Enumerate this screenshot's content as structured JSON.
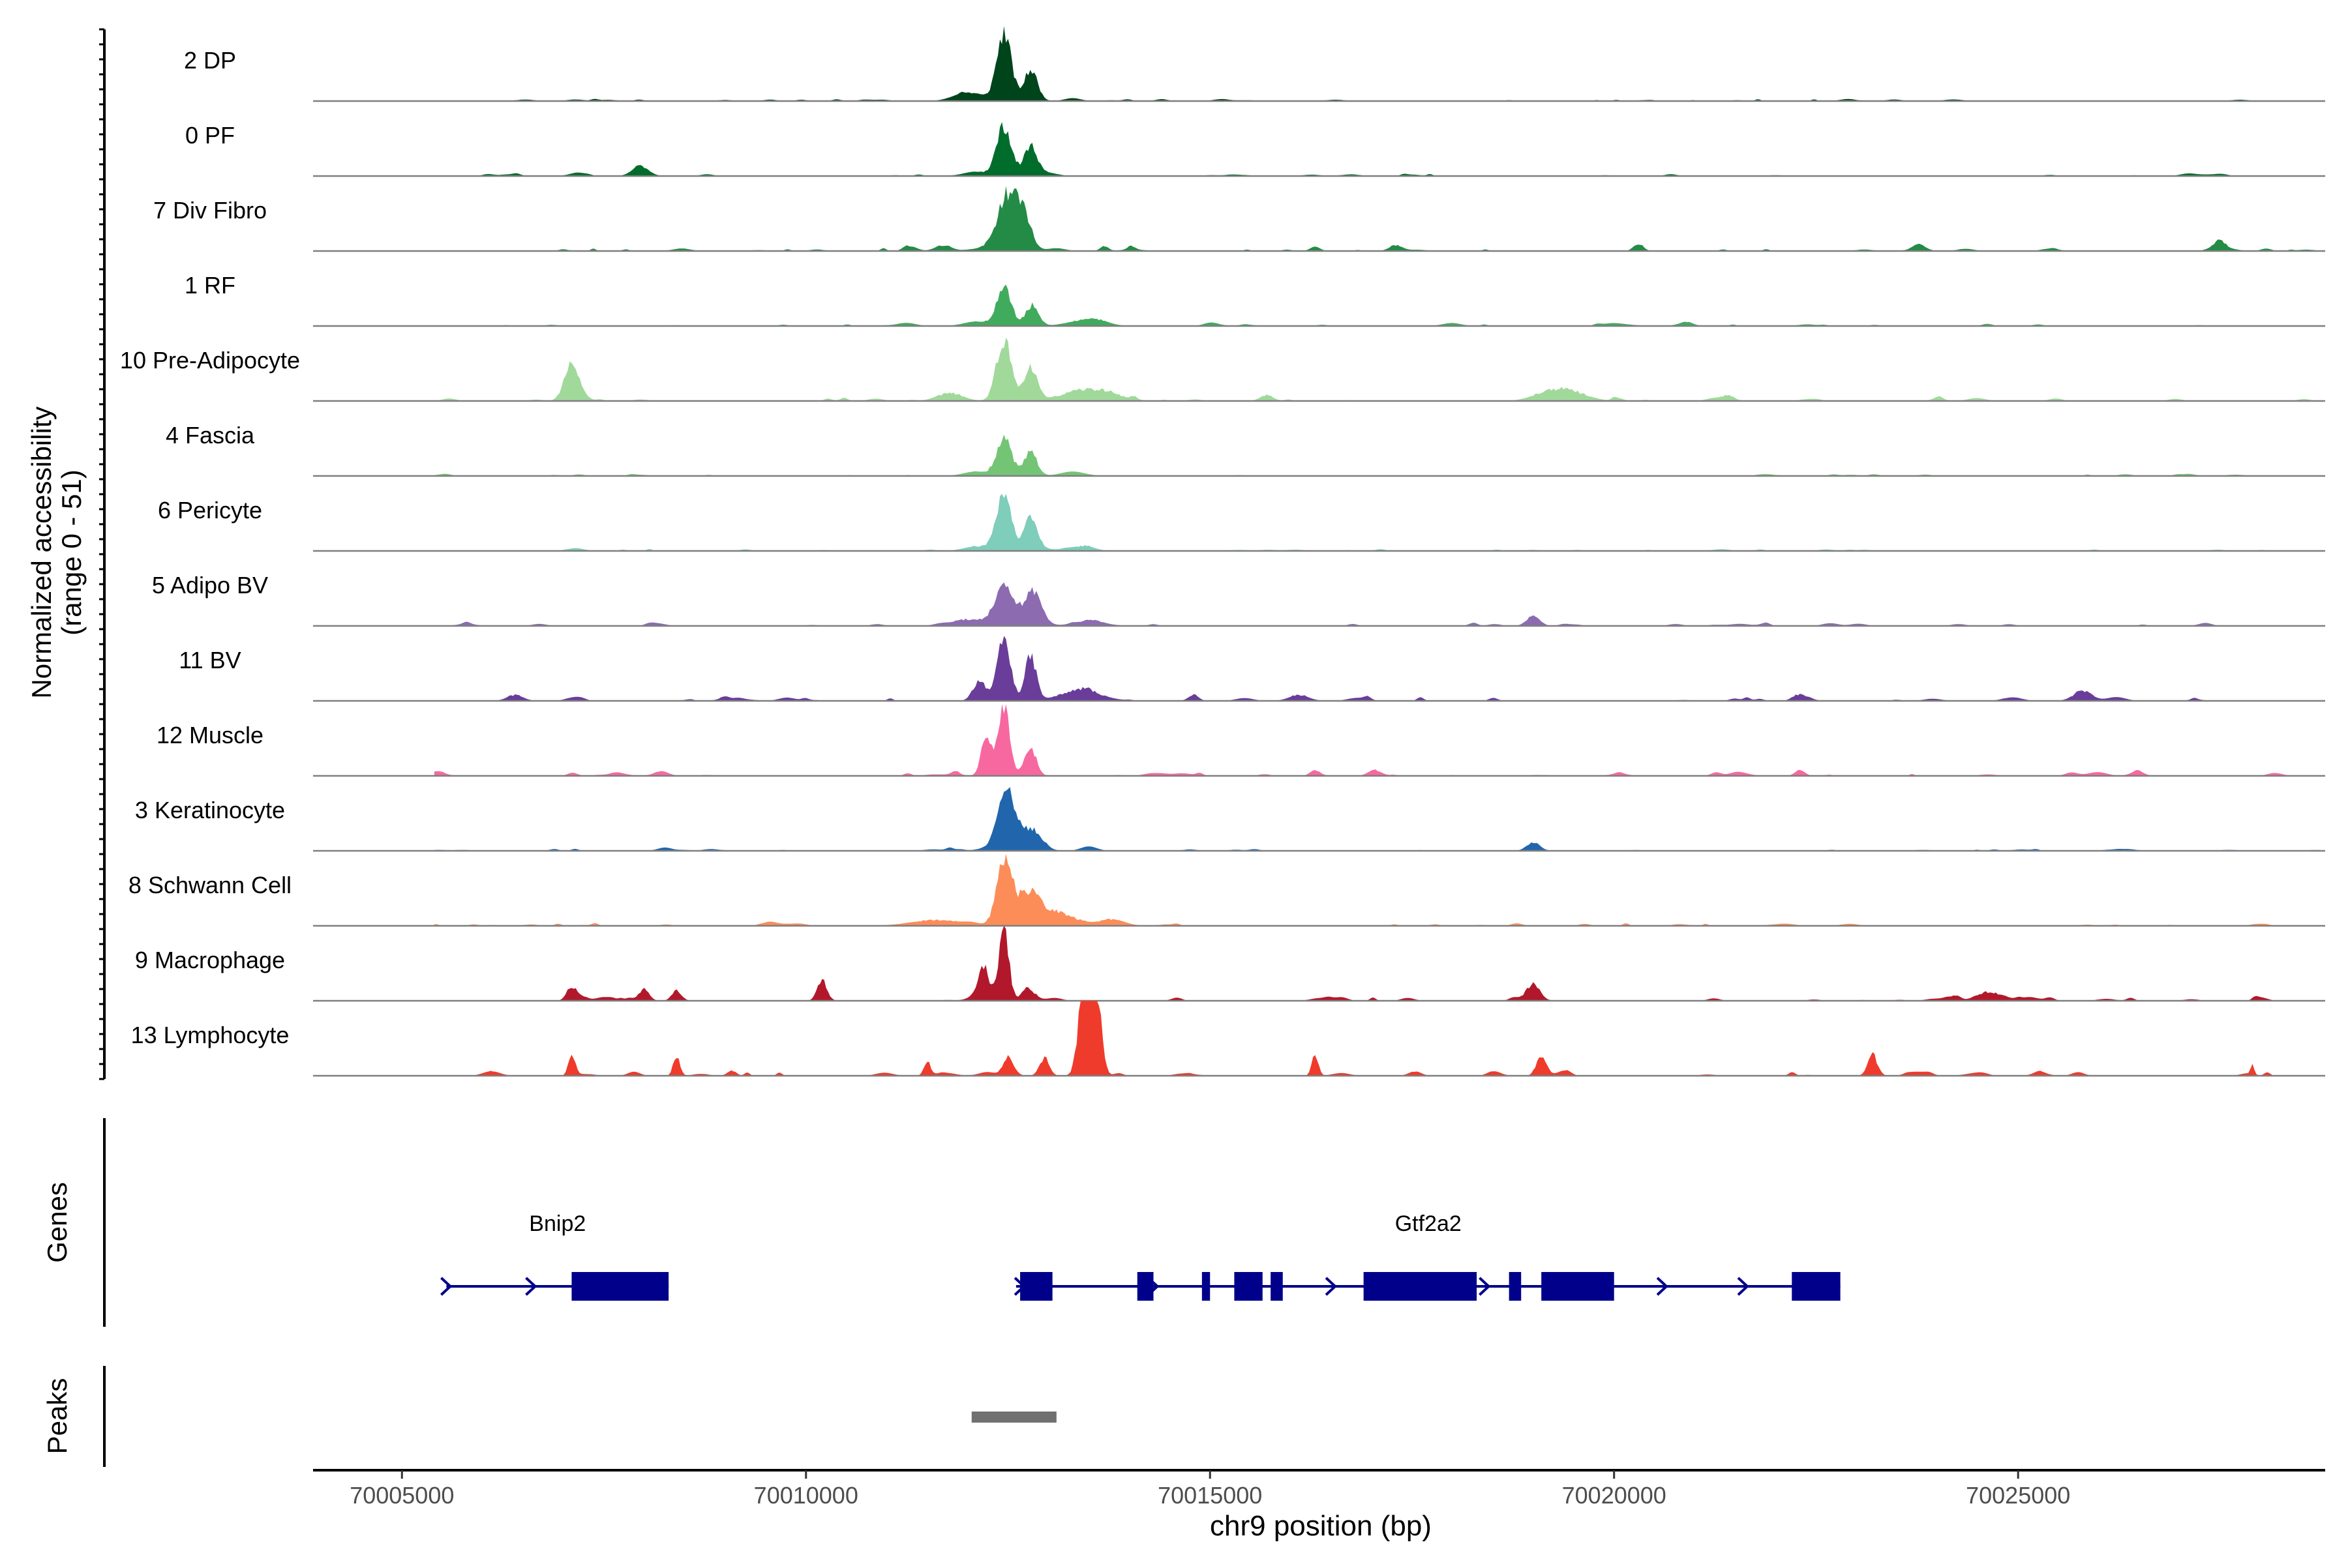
{
  "chart_data": {
    "type": "area",
    "title": "",
    "ylabel_line1": "Normalized accessibility",
    "ylabel_line2": "(range 0 - 51)",
    "xlabel": "chr9 position (bp)",
    "chromosome": "chr9",
    "xlim": [
      70003900,
      70028800
    ],
    "ylim": [
      0,
      51
    ],
    "x_ticks": [
      70005000,
      70010000,
      70015000,
      70020000,
      70025000
    ],
    "x_tick_labels": [
      "70005000",
      "70010000",
      "70015000",
      "70020000",
      "70025000"
    ],
    "panel_labels": {
      "genes": "Genes",
      "peaks": "Peaks"
    },
    "tracks": [
      {
        "name": "2 DP",
        "color": "#00441b",
        "peaks": [
          [
            70012450,
            46,
            90
          ],
          [
            70012780,
            20,
            80
          ],
          [
            70011900,
            3,
            150
          ],
          [
            70012100,
            4,
            120
          ],
          [
            70013300,
            2,
            100
          ]
        ],
        "noise": 1.5,
        "noise_seed": 11
      },
      {
        "name": "0 PF",
        "color": "#006d2c",
        "peaks": [
          [
            70012450,
            34,
            90
          ],
          [
            70012780,
            20,
            80
          ],
          [
            70007950,
            7,
            100
          ],
          [
            70012100,
            3,
            150
          ],
          [
            70013000,
            2,
            120
          ]
        ],
        "noise": 1.4,
        "noise_seed": 23
      },
      {
        "name": "7 Div Fibro",
        "color": "#238b45",
        "peaks": [
          [
            70012480,
            34,
            120
          ],
          [
            70012680,
            24,
            100
          ],
          [
            70011700,
            4,
            100
          ],
          [
            70027500,
            5,
            60
          ],
          [
            70020300,
            5,
            60
          ],
          [
            70017300,
            4,
            80
          ],
          [
            70016300,
            3,
            60
          ],
          [
            70011300,
            3,
            80
          ]
        ],
        "noise": 2.2,
        "noise_seed": 37
      },
      {
        "name": "1 RF",
        "color": "#41ab5d",
        "peaks": [
          [
            70012450,
            26,
            90
          ],
          [
            70012800,
            14,
            80
          ],
          [
            70012100,
            3,
            150
          ],
          [
            70013400,
            3,
            200
          ],
          [
            70013600,
            3,
            150
          ]
        ],
        "noise": 1.3,
        "noise_seed": 41
      },
      {
        "name": "10 Pre-Adipocyte",
        "color": "#a1d99b",
        "peaks": [
          [
            70012450,
            42,
            90
          ],
          [
            70012780,
            22,
            80
          ],
          [
            70007100,
            25,
            90
          ],
          [
            70013500,
            8,
            300
          ],
          [
            70019200,
            6,
            200
          ],
          [
            70019500,
            5,
            200
          ],
          [
            70015700,
            4,
            80
          ],
          [
            70011800,
            5,
            150
          ]
        ],
        "noise": 2.3,
        "noise_seed": 53
      },
      {
        "name": "4 Fascia",
        "color": "#74c476",
        "peaks": [
          [
            70012450,
            26,
            90
          ],
          [
            70012780,
            16,
            80
          ],
          [
            70012100,
            3,
            150
          ],
          [
            70013300,
            3,
            150
          ]
        ],
        "noise": 1.1,
        "noise_seed": 67
      },
      {
        "name": "6 Pericyte",
        "color": "#7fcdbb",
        "peaks": [
          [
            70012450,
            40,
            90
          ],
          [
            70012780,
            22,
            80
          ],
          [
            70012100,
            3,
            150
          ],
          [
            70013400,
            3,
            150
          ]
        ],
        "noise": 1.2,
        "noise_seed": 71
      },
      {
        "name": "5 Adipo BV",
        "color": "#8c6bb1",
        "peaks": [
          [
            70012450,
            26,
            110
          ],
          [
            70012800,
            24,
            110
          ],
          [
            70019000,
            7,
            80
          ],
          [
            70012050,
            4,
            150
          ],
          [
            70013500,
            3,
            200
          ]
        ],
        "noise": 1.6,
        "noise_seed": 83
      },
      {
        "name": "11 BV",
        "color": "#6a3d9a",
        "peaks": [
          [
            70012450,
            42,
            80
          ],
          [
            70012780,
            30,
            70
          ],
          [
            70012150,
            14,
            80
          ],
          [
            70013400,
            7,
            250
          ],
          [
            70025800,
            5,
            120
          ],
          [
            70014800,
            4,
            60
          ],
          [
            70016100,
            4,
            120
          ],
          [
            70006400,
            4,
            100
          ]
        ],
        "noise": 2.6,
        "noise_seed": 97
      },
      {
        "name": "12 Muscle",
        "color": "#f768a1",
        "peaks": [
          [
            70012450,
            48,
            70
          ],
          [
            70012230,
            28,
            60
          ],
          [
            70012780,
            18,
            70
          ],
          [
            70016300,
            4,
            60
          ],
          [
            70022300,
            4,
            60
          ],
          [
            70008200,
            3,
            80
          ]
        ],
        "noise": 2.5,
        "noise_seed": 101
      },
      {
        "name": "3 Keratinocyte",
        "color": "#2166ac",
        "peaks": [
          [
            70012480,
            40,
            110
          ],
          [
            70012800,
            14,
            120
          ],
          [
            70019000,
            6,
            80
          ],
          [
            70013500,
            3,
            100
          ]
        ],
        "noise": 1.3,
        "noise_seed": 113
      },
      {
        "name": "8 Schwann Cell",
        "color": "#fc8d59",
        "peaks": [
          [
            70012450,
            44,
            90
          ],
          [
            70012750,
            20,
            140
          ],
          [
            70013100,
            8,
            250
          ],
          [
            70013800,
            4,
            150
          ],
          [
            70011600,
            4,
            300
          ]
        ],
        "noise": 1.8,
        "noise_seed": 127
      },
      {
        "name": "9 Macrophage",
        "color": "#b2182b",
        "peaks": [
          [
            70012450,
            48,
            60
          ],
          [
            70012200,
            22,
            70
          ],
          [
            70010200,
            14,
            60
          ],
          [
            70007100,
            10,
            60
          ],
          [
            70019000,
            10,
            80
          ],
          [
            70008000,
            8,
            60
          ],
          [
            70008400,
            7,
            60
          ],
          [
            70012750,
            6,
            80
          ],
          [
            70024700,
            5,
            150
          ]
        ],
        "noise": 2.8,
        "noise_seed": 131
      },
      {
        "name": "13 Lymphocyte",
        "color": "#ef3b2c",
        "peaks": [
          [
            70013450,
            70,
            70
          ],
          [
            70013600,
            50,
            60
          ],
          [
            70012500,
            12,
            60
          ],
          [
            70012950,
            12,
            60
          ],
          [
            70007100,
            14,
            40
          ],
          [
            70008400,
            14,
            40
          ],
          [
            70019100,
            14,
            60
          ],
          [
            70023200,
            14,
            60
          ],
          [
            70016300,
            14,
            40
          ],
          [
            70011500,
            10,
            40
          ],
          [
            70027900,
            8,
            20
          ]
        ],
        "noise": 3.2,
        "noise_seed": 149
      }
    ],
    "genes": [
      {
        "name": "Bnip2",
        "strand": "+",
        "start": 70005550,
        "end": 70008300,
        "arrows": [
          70005550,
          70006600
        ],
        "exons": [
          [
            70007100,
            70008300
          ]
        ]
      },
      {
        "name": "Gtf2a2",
        "strand": "+",
        "start": 70012600,
        "end": 70022800,
        "arrows": [
          70012650,
          70014300,
          70016500,
          70018400,
          70020600,
          70021600
        ],
        "exons": [
          [
            70012650,
            70013050
          ],
          [
            70014100,
            70014300
          ],
          [
            70014900,
            70015000
          ],
          [
            70015300,
            70015650
          ],
          [
            70015750,
            70015900
          ],
          [
            70016900,
            70018300
          ],
          [
            70018700,
            70018850
          ],
          [
            70019100,
            70020000
          ],
          [
            70022200,
            70022800
          ]
        ]
      }
    ],
    "peaks_track": [
      {
        "start": 70012050,
        "end": 70013100,
        "color": "#707070"
      }
    ]
  }
}
